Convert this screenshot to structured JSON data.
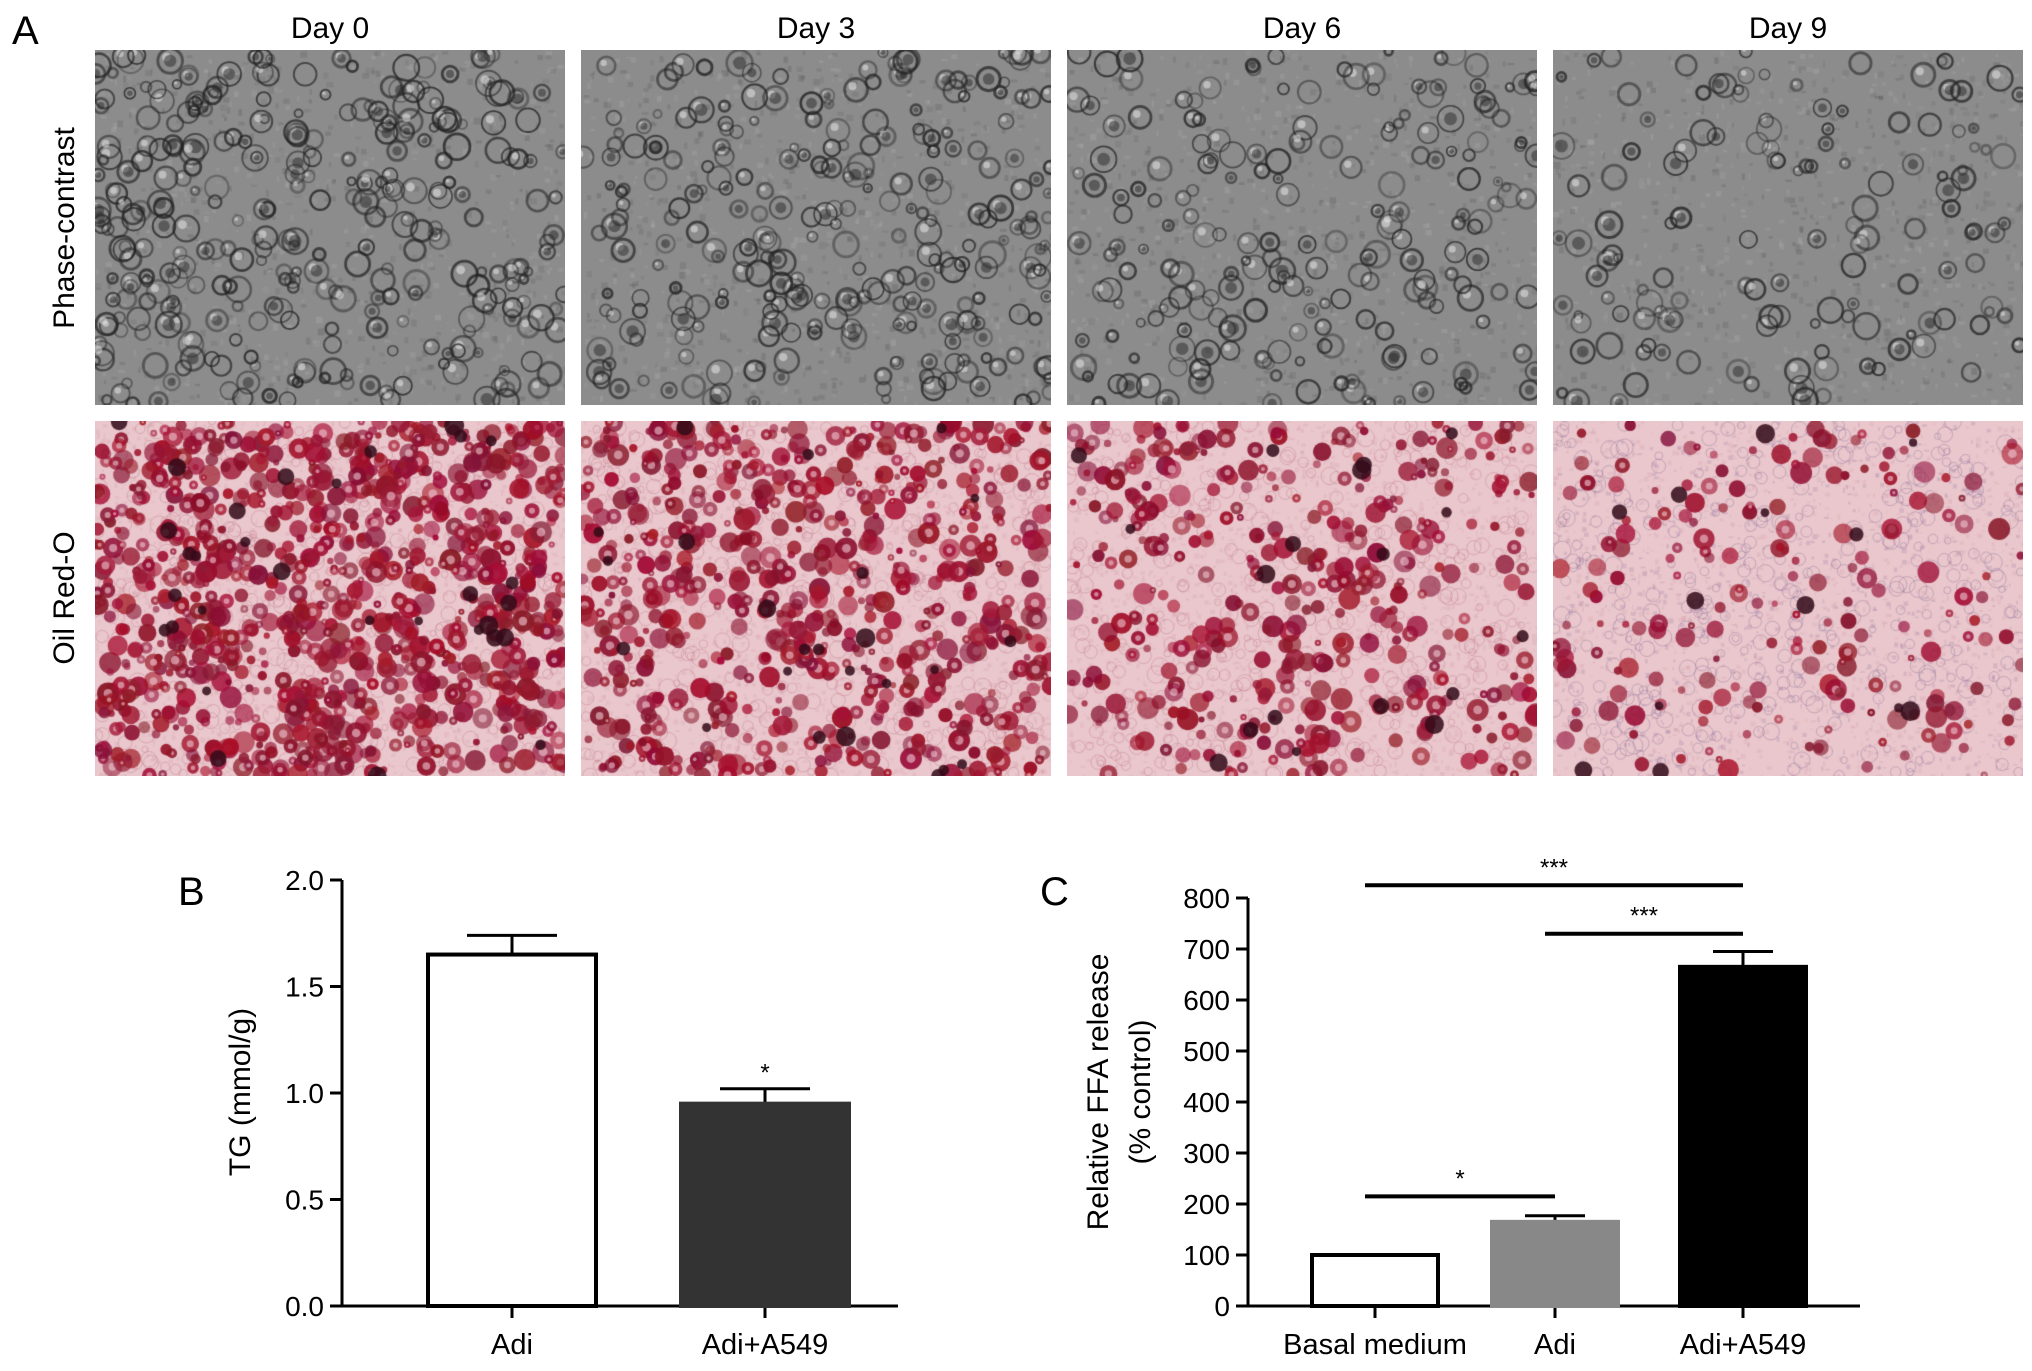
{
  "panels": {
    "a": {
      "letter": "A",
      "columns": [
        "Day 0",
        "Day 3",
        "Day 6",
        "Day 9"
      ],
      "rows": [
        "Phase-contrast",
        "Oil Red-O"
      ],
      "lipid_staining_density": [
        0.92,
        0.62,
        0.38,
        0.18
      ],
      "colors": {
        "phase_bg": "#8c8c8c",
        "oil_bg": "#e9c7cc",
        "oil_stain": "#9b1430",
        "oil_late": "#b898b8"
      }
    },
    "b": {
      "letter": "B"
    },
    "c": {
      "letter": "C"
    }
  },
  "chart_data": [
    {
      "type": "bar",
      "panel": "B",
      "categories": [
        "Adi",
        "Adi+A549"
      ],
      "values": [
        1.65,
        0.95
      ],
      "errors": [
        0.09,
        0.07
      ],
      "bar_colors": [
        "#ffffff",
        "#333333"
      ],
      "ylabel": "TG (mmol/g)",
      "xlabel": "",
      "ylim": [
        0,
        2.0
      ],
      "yticks": [
        "0.0",
        "0.5",
        "1.0",
        "1.5",
        "2.0"
      ],
      "annotations": [
        {
          "category": "Adi+A549",
          "text": "*"
        }
      ]
    },
    {
      "type": "bar",
      "panel": "C",
      "categories": [
        "Basal medium",
        "Adi",
        "Adi+A549"
      ],
      "values": [
        100,
        165,
        665
      ],
      "errors": [
        0,
        12,
        30
      ],
      "bar_colors": [
        "#ffffff",
        "#888888",
        "#000000"
      ],
      "ylabel": "Relative FFA release",
      "ylabel2": "(% control)",
      "xlabel": "",
      "ylim": [
        0,
        800
      ],
      "yticks": [
        "0",
        "100",
        "200",
        "300",
        "400",
        "500",
        "600",
        "700",
        "800"
      ],
      "significance": [
        {
          "from": "Basal medium",
          "to": "Adi",
          "y": 215,
          "text": "*"
        },
        {
          "from": "Adi",
          "to": "Adi+A549",
          "y": 730,
          "text": "***"
        },
        {
          "from": "Basal medium",
          "to": "Adi+A549",
          "y": 825,
          "text": "***"
        }
      ]
    }
  ]
}
